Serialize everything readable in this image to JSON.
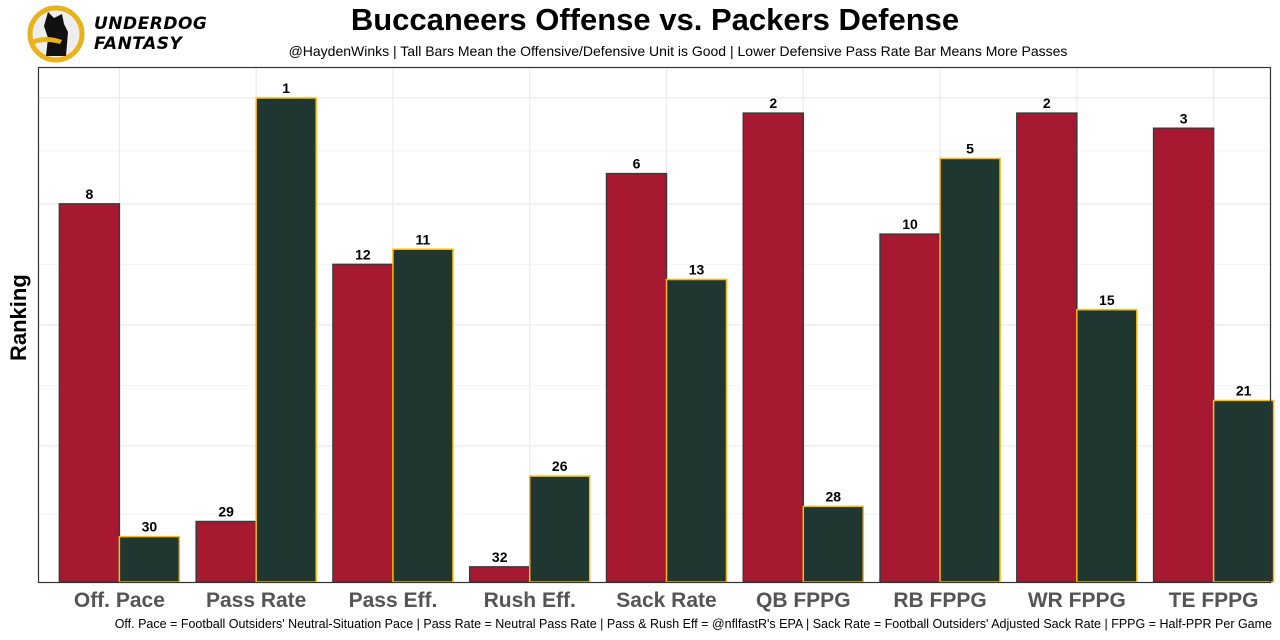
{
  "header": {
    "title": "Buccaneers Offense vs. Packers Defense",
    "subtitle": "@HaydenWinks | Tall Bars Mean the Offensive/Defensive Unit is Good | Lower Defensive Pass Rate Bar Means More Passes",
    "logo_line1": "UNDERDOG",
    "logo_line2": "FANTASY",
    "caption": "Off. Pace = Football Outsiders' Neutral-Situation Pace | Pass Rate = Neutral Pass Rate | Pass & Rush Eff = @nflfastR's EPA | Sack Rate = Football Outsiders' Adjusted Sack Rate | FPPG = Half-PPR Per Game"
  },
  "colors": {
    "offense_fill": "#A71930",
    "offense_stroke": "#3a3a3a",
    "defense_fill": "#203731",
    "defense_stroke": "#FFB612",
    "grid": "#ebebeb",
    "logo_ring": "#E8B21A"
  },
  "chart_data": {
    "type": "bar",
    "title": "Buccaneers Offense vs. Packers Defense",
    "xlabel": "",
    "ylabel": "Ranking",
    "y_scale_note": "bar height = 33 - rank (rank 1 is tallest)",
    "ylim": [
      0,
      33
    ],
    "grid": true,
    "categories": [
      "Off. Pace",
      "Pass Rate",
      "Pass Eff.",
      "Rush Eff.",
      "Sack Rate",
      "QB FPPG",
      "RB FPPG",
      "WR FPPG",
      "TE FPPG"
    ],
    "series": [
      {
        "name": "Buccaneers Offense",
        "values": [
          8,
          29,
          12,
          32,
          6,
          2,
          10,
          2,
          3
        ]
      },
      {
        "name": "Packers Defense",
        "values": [
          30,
          1,
          11,
          26,
          13,
          28,
          5,
          15,
          21
        ]
      }
    ]
  }
}
